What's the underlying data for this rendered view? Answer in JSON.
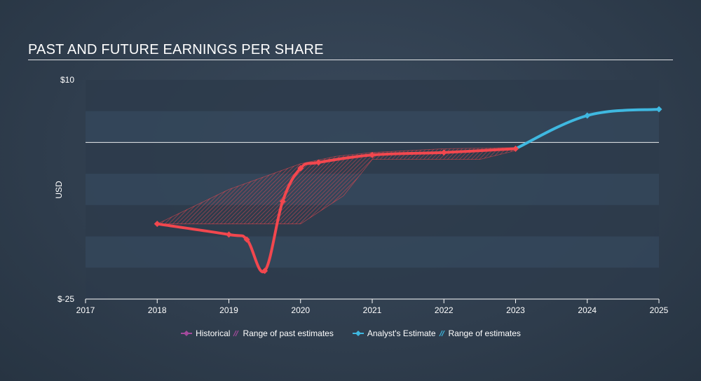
{
  "chart_data": {
    "type": "line",
    "title": "PAST AND FUTURE EARNINGS PER SHARE",
    "ylabel": "USD",
    "ylim": [
      -25,
      10
    ],
    "y_tick_labels": [
      {
        "value": 10,
        "label": "$10"
      },
      {
        "value": -25,
        "label": "$-25"
      }
    ],
    "xlim": [
      2017,
      2025
    ],
    "x_tick_labels": [
      "2017",
      "2018",
      "2019",
      "2020",
      "2021",
      "2022",
      "2023",
      "2024",
      "2025"
    ],
    "zero_line": 0,
    "series": [
      {
        "name": "Historical",
        "color": "#f2474e",
        "points": [
          {
            "x": 2018.0,
            "y": -13.0
          },
          {
            "x": 2019.0,
            "y": -14.7
          },
          {
            "x": 2019.25,
            "y": -15.5
          },
          {
            "x": 2019.5,
            "y": -20.5
          },
          {
            "x": 2019.75,
            "y": -9.4
          },
          {
            "x": 2020.0,
            "y": -4.1
          },
          {
            "x": 2020.25,
            "y": -3.2
          },
          {
            "x": 2021.0,
            "y": -2.0
          },
          {
            "x": 2022.0,
            "y": -1.6
          },
          {
            "x": 2023.0,
            "y": -1.0
          }
        ]
      },
      {
        "name": "Analyst's Estimate",
        "color": "#3fb8e0",
        "points": [
          {
            "x": 2023.0,
            "y": -1.0
          },
          {
            "x": 2024.0,
            "y": 4.3
          },
          {
            "x": 2025.0,
            "y": 5.3
          }
        ]
      }
    ],
    "past_estimate_range": {
      "name": "Range of past estimates",
      "color": "#f2474e",
      "upper": [
        {
          "x": 2018.0,
          "y": -13.0
        },
        {
          "x": 2019.0,
          "y": -7.5
        },
        {
          "x": 2020.0,
          "y": -3.4
        },
        {
          "x": 2020.5,
          "y": -2.2
        },
        {
          "x": 2021.0,
          "y": -1.6
        },
        {
          "x": 2022.0,
          "y": -1.0
        },
        {
          "x": 2023.0,
          "y": -0.8
        }
      ],
      "lower": [
        {
          "x": 2023.0,
          "y": -1.3
        },
        {
          "x": 2022.5,
          "y": -2.7
        },
        {
          "x": 2022.0,
          "y": -2.7
        },
        {
          "x": 2021.0,
          "y": -2.7
        },
        {
          "x": 2020.6,
          "y": -8.5
        },
        {
          "x": 2020.0,
          "y": -13.0
        },
        {
          "x": 2019.0,
          "y": -13.0
        },
        {
          "x": 2018.0,
          "y": -13.0
        }
      ]
    },
    "legend": [
      {
        "label": "Historical",
        "color": "#a44a9c",
        "marker": "diamond-line"
      },
      {
        "label": "Range of past estimates",
        "color": "#a44a9c",
        "marker": "hatch"
      },
      {
        "label": "Analyst's Estimate",
        "color": "#3fb8e0",
        "marker": "diamond-line"
      },
      {
        "label": "Range of estimates",
        "color": "#3fb8e0",
        "marker": "hatch"
      }
    ],
    "legend_position": "bottom-center"
  }
}
